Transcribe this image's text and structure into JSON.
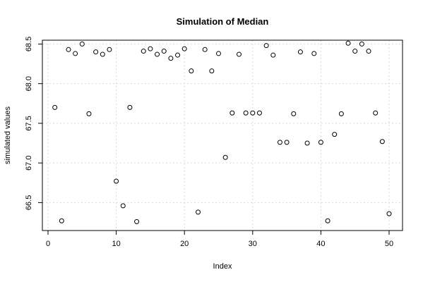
{
  "chart_data": {
    "type": "scatter",
    "title": "Simulation of Median",
    "xlabel": "Index",
    "ylabel": "simulated values",
    "xlim": [
      0,
      50
    ],
    "ylim": [
      66.25,
      68.55
    ],
    "xticks": [
      0,
      10,
      20,
      30,
      40,
      50
    ],
    "yticks": [
      66.5,
      67.0,
      67.5,
      68.0,
      68.5
    ],
    "xtick_labels": [
      "0",
      "10",
      "20",
      "30",
      "40",
      "50"
    ],
    "ytick_labels": [
      "66.5",
      "67.0",
      "67.5",
      "68.0",
      "68.5"
    ],
    "grid": true,
    "x": [
      1,
      2,
      3,
      4,
      5,
      6,
      7,
      8,
      9,
      10,
      11,
      12,
      13,
      14,
      15,
      16,
      17,
      18,
      19,
      20,
      21,
      22,
      23,
      24,
      25,
      26,
      27,
      28,
      29,
      30,
      31,
      32,
      33,
      34,
      35,
      36,
      37,
      38,
      39,
      40,
      41,
      42,
      43,
      44,
      45,
      46,
      47,
      48,
      49,
      50
    ],
    "y": [
      67.7,
      66.27,
      68.43,
      68.38,
      68.5,
      67.62,
      68.4,
      68.37,
      68.43,
      66.77,
      66.46,
      67.7,
      66.26,
      68.41,
      68.44,
      68.37,
      68.41,
      68.32,
      68.36,
      68.44,
      68.16,
      66.38,
      68.43,
      68.16,
      68.38,
      67.07,
      67.63,
      68.37,
      67.63,
      67.63,
      67.63,
      68.48,
      68.36,
      67.26,
      67.26,
      67.62,
      68.4,
      67.25,
      68.38,
      67.26,
      66.27,
      67.36,
      67.62,
      68.51,
      68.41,
      68.5,
      68.41,
      67.63,
      67.27,
      66.36
    ]
  }
}
